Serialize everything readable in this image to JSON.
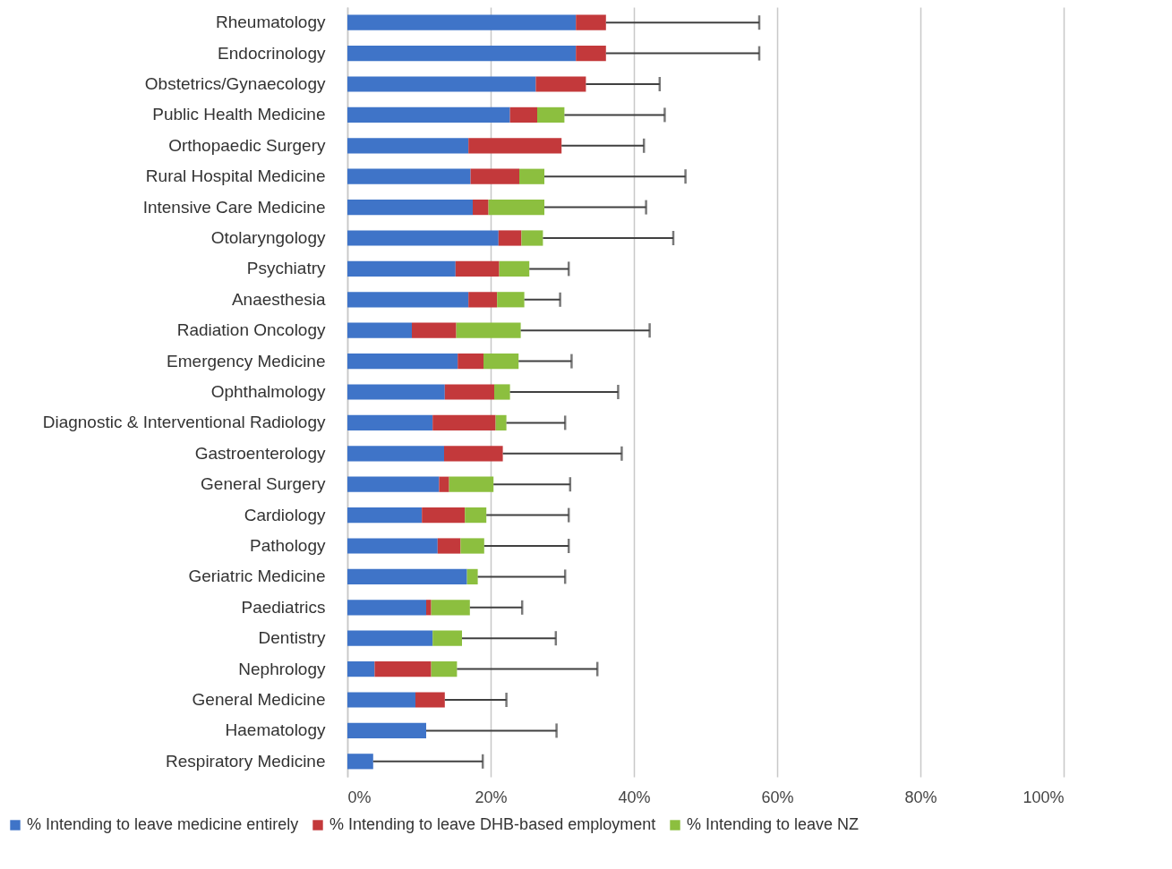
{
  "chart_data": {
    "type": "bar",
    "orientation": "horizontal",
    "stacked": true,
    "grid": "x",
    "legend": "bottom",
    "categories": [
      "Rheumatology",
      "Endocrinology",
      "Obstetrics/Gynaecology",
      "Public Health Medicine",
      "Orthopaedic Surgery",
      "Rural Hospital Medicine",
      "Intensive Care Medicine",
      "Otolaryngology",
      "Psychiatry",
      "Anaesthesia",
      "Radiation Oncology",
      "Emergency Medicine",
      "Ophthalmology",
      "Diagnostic & Interventional Radiology",
      "Gastroenterology",
      "General Surgery",
      "Cardiology",
      "Pathology",
      "Geriatric Medicine",
      "Paediatrics",
      "Dentistry",
      "Nephrology",
      "General Medicine",
      "Haematology",
      "Respiratory Medicine"
    ],
    "xlim": [
      0,
      100
    ],
    "xticks": [
      {
        "value": 0,
        "label": "0%"
      },
      {
        "value": 20,
        "label": "20%"
      },
      {
        "value": 40,
        "label": "40%"
      },
      {
        "value": 60,
        "label": "60%"
      },
      {
        "value": 80,
        "label": "80%"
      },
      {
        "value": 100,
        "label": "100%"
      }
    ],
    "series": [
      {
        "name": "% Intending to leave medicine entirely",
        "color": "#3f74c8",
        "values": [
          31.9,
          31.9,
          26.3,
          22.7,
          16.9,
          17.2,
          17.5,
          21.1,
          15.1,
          16.9,
          9.0,
          15.4,
          13.6,
          11.9,
          13.5,
          12.8,
          10.4,
          12.6,
          16.7,
          11.0,
          11.9,
          3.8,
          9.5,
          11.0,
          3.6
        ]
      },
      {
        "name": "% Intending to leave DHB-based employment",
        "color": "#c3393b",
        "values": [
          4.2,
          4.2,
          7.0,
          3.8,
          13.0,
          6.8,
          2.2,
          3.2,
          6.1,
          4.0,
          6.2,
          3.6,
          6.9,
          8.8,
          8.2,
          1.4,
          6.0,
          3.2,
          0,
          0.7,
          0,
          7.9,
          4.1,
          0,
          0
        ]
      },
      {
        "name": "% Intending to leave NZ",
        "color": "#8cbf3f",
        "values": [
          0,
          0,
          0,
          3.8,
          0,
          3.5,
          7.8,
          3.0,
          4.2,
          3.8,
          9.0,
          4.9,
          2.2,
          1.5,
          0,
          6.2,
          3.0,
          3.3,
          1.5,
          5.4,
          4.1,
          3.6,
          0,
          0,
          0
        ],
        "errors": [
          [
            36.1,
            57.5
          ],
          [
            36.1,
            57.5
          ],
          [
            33.3,
            43.6
          ],
          [
            30.3,
            44.3
          ],
          [
            29.9,
            41.4
          ],
          [
            27.5,
            47.2
          ],
          [
            27.5,
            41.7
          ],
          [
            27.3,
            45.5
          ],
          [
            25.4,
            30.9
          ],
          [
            24.7,
            29.7
          ],
          [
            24.2,
            42.2
          ],
          [
            23.9,
            31.3
          ],
          [
            22.7,
            37.8
          ],
          [
            22.2,
            30.4
          ],
          [
            21.7,
            38.3
          ],
          [
            20.4,
            31.1
          ],
          [
            19.4,
            30.9
          ],
          [
            19.1,
            30.9
          ],
          [
            18.2,
            30.4
          ],
          [
            17.1,
            24.4
          ],
          [
            16.0,
            29.1
          ],
          [
            15.3,
            34.9
          ],
          [
            13.6,
            22.2
          ],
          [
            11.0,
            29.2
          ],
          [
            3.6,
            18.9
          ]
        ]
      }
    ]
  }
}
